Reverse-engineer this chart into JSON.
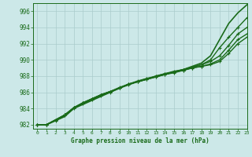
{
  "title": "Graphe pression niveau de la mer (hPa)",
  "bg_color": "#cce8e8",
  "grid_color": "#aacccc",
  "line_color": "#1a6b1a",
  "xlim": [
    -0.5,
    23
  ],
  "ylim": [
    981.5,
    997
  ],
  "yticks": [
    982,
    984,
    986,
    988,
    990,
    992,
    994,
    996
  ],
  "xticks": [
    0,
    1,
    2,
    3,
    4,
    5,
    6,
    7,
    8,
    9,
    10,
    11,
    12,
    13,
    14,
    15,
    16,
    17,
    18,
    19,
    20,
    21,
    22,
    23
  ],
  "series": [
    {
      "x": [
        0,
        1,
        2,
        3,
        4,
        5,
        6,
        7,
        8,
        9,
        10,
        11,
        12,
        13,
        14,
        15,
        16,
        17,
        18,
        19,
        20,
        21,
        22,
        23
      ],
      "y": [
        982.0,
        982.0,
        982.5,
        983.0,
        984.0,
        984.5,
        985.0,
        985.5,
        986.0,
        986.5,
        987.0,
        987.3,
        987.6,
        987.9,
        988.2,
        988.5,
        988.8,
        989.2,
        989.6,
        990.5,
        992.5,
        994.5,
        995.8,
        996.8
      ],
      "marker": null,
      "lw": 1.2
    },
    {
      "x": [
        0,
        1,
        2,
        3,
        4,
        5,
        6,
        7,
        8,
        9,
        10,
        11,
        12,
        13,
        14,
        15,
        16,
        17,
        18,
        19,
        20,
        21,
        22,
        23
      ],
      "y": [
        982.0,
        982.0,
        982.5,
        983.1,
        984.0,
        984.6,
        985.1,
        985.6,
        986.0,
        986.5,
        987.0,
        987.3,
        987.6,
        988.0,
        988.3,
        988.5,
        988.8,
        989.1,
        989.4,
        990.0,
        991.5,
        992.8,
        994.0,
        995.2
      ],
      "marker": "+",
      "lw": 1.0
    },
    {
      "x": [
        0,
        1,
        2,
        3,
        4,
        5,
        6,
        7,
        8,
        9,
        10,
        11,
        12,
        13,
        14,
        15,
        16,
        17,
        18,
        19,
        20,
        21,
        22,
        23
      ],
      "y": [
        982.0,
        982.0,
        982.6,
        983.2,
        984.1,
        984.7,
        985.2,
        985.7,
        986.1,
        986.6,
        987.0,
        987.4,
        987.7,
        988.0,
        988.3,
        988.6,
        988.8,
        989.1,
        989.4,
        989.8,
        990.5,
        991.8,
        993.2,
        994.0
      ],
      "marker": "+",
      "lw": 1.0
    },
    {
      "x": [
        0,
        1,
        2,
        3,
        4,
        5,
        6,
        7,
        8,
        9,
        10,
        11,
        12,
        13,
        14,
        15,
        16,
        17,
        18,
        19,
        20,
        21,
        22,
        23
      ],
      "y": [
        982.0,
        982.0,
        982.6,
        983.2,
        984.1,
        984.7,
        985.2,
        985.7,
        986.1,
        986.5,
        987.0,
        987.3,
        987.7,
        987.9,
        988.2,
        988.5,
        988.7,
        989.0,
        989.2,
        989.5,
        990.0,
        991.2,
        992.5,
        993.2
      ],
      "marker": "+",
      "lw": 1.0
    },
    {
      "x": [
        0,
        1,
        2,
        3,
        4,
        5,
        6,
        7,
        8,
        9,
        10,
        11,
        12,
        13,
        14,
        15,
        16,
        17,
        18,
        19,
        20,
        21,
        22,
        23
      ],
      "y": [
        982.0,
        982.0,
        982.6,
        983.2,
        984.1,
        984.7,
        985.2,
        985.7,
        986.1,
        986.5,
        986.9,
        987.3,
        987.6,
        987.9,
        988.2,
        988.4,
        988.7,
        989.0,
        989.2,
        989.4,
        989.8,
        990.8,
        992.0,
        992.8
      ],
      "marker": "+",
      "lw": 1.0
    }
  ]
}
